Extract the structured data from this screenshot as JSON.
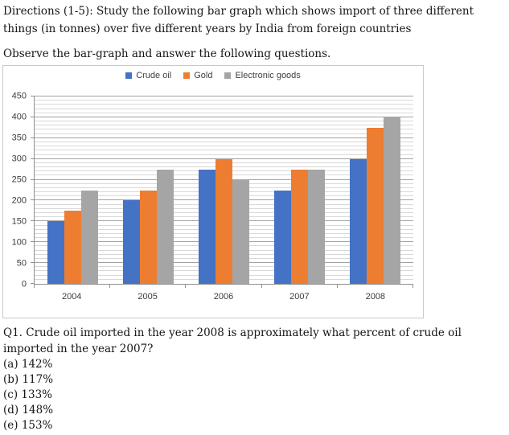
{
  "document": {
    "directions": "Directions (1-5): Study the following bar graph which shows import of three different things (in tonnes) over five different years by India from foreign countries",
    "observe_line": "Observe the bar-graph and answer the following questions."
  },
  "chart_data": {
    "type": "bar",
    "title": "",
    "categories": [
      "2004",
      "2005",
      "2006",
      "2007",
      "2008"
    ],
    "series": [
      {
        "name": "Crude oil",
        "color": "#4472C4",
        "values": [
          150,
          200,
          275,
          225,
          300
        ]
      },
      {
        "name": "Gold",
        "color": "#ED7D31",
        "values": [
          175,
          225,
          300,
          275,
          375
        ]
      },
      {
        "name": "Electronic goods",
        "color": "#A5A5A5",
        "values": [
          225,
          275,
          250,
          275,
          400
        ]
      }
    ],
    "xlabel": "",
    "ylabel": "",
    "ylim": [
      0,
      450
    ],
    "y_major_step": 50,
    "y_minor_step": 10,
    "grid": true,
    "legend_position": "top",
    "colors": {
      "major_gridline": "#a3a3a3",
      "minor_gridline": "#d8d8d8",
      "axis": "#8f8f8f"
    }
  },
  "question": {
    "text": "Q1. Crude oil imported in the year 2008 is approximately what percent of crude oil imported in the year 2007?",
    "options": [
      "(a) 142%",
      "(b) 117%",
      "(c) 133%",
      "(d) 148%",
      "(e) 153%"
    ]
  }
}
